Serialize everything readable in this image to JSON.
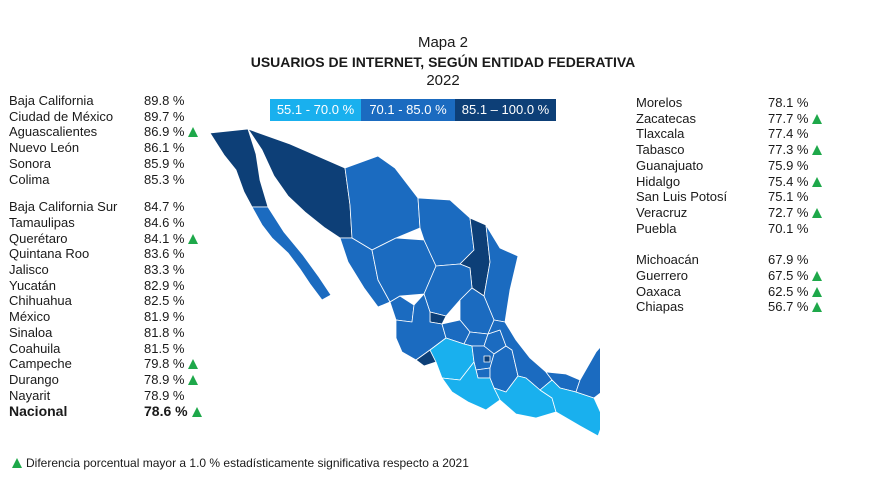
{
  "chart_data": {
    "type": "choropleth-map",
    "title": "Mapa 2",
    "subtitle": "USUARIOS DE INTERNET, SEGÚN ENTIDAD FEDERATIVA",
    "year": "2022",
    "unit": "%",
    "legend": [
      {
        "label": "55.1 - 70.0 %",
        "color": "#19b0ee"
      },
      {
        "label": "70.1 - 85.0 %",
        "color": "#1b6bc0"
      },
      {
        "label": "85.1 – 100.0 %",
        "color": "#0d3f77"
      }
    ],
    "left_groups": [
      [
        {
          "name": "Baja California",
          "value": "89.8 %",
          "sig": false
        },
        {
          "name": "Ciudad de México",
          "value": "89.7 %",
          "sig": false
        },
        {
          "name": "Aguascalientes",
          "value": "86.9 %",
          "sig": true
        },
        {
          "name": "Nuevo León",
          "value": "86.1 %",
          "sig": false
        },
        {
          "name": "Sonora",
          "value": "85.9 %",
          "sig": false
        },
        {
          "name": "Colima",
          "value": "85.3 %",
          "sig": false
        }
      ],
      [
        {
          "name": "Baja California Sur",
          "value": "84.7 %",
          "sig": false
        },
        {
          "name": "Tamaulipas",
          "value": "84.6 %",
          "sig": false
        },
        {
          "name": "Querétaro",
          "value": "84.1 %",
          "sig": true
        },
        {
          "name": "Quintana Roo",
          "value": "83.6 %",
          "sig": false
        },
        {
          "name": "Jalisco",
          "value": "83.3 %",
          "sig": false
        },
        {
          "name": "Yucatán",
          "value": "82.9 %",
          "sig": false
        },
        {
          "name": "Chihuahua",
          "value": "82.5 %",
          "sig": false
        },
        {
          "name": "México",
          "value": "81.9 %",
          "sig": false
        },
        {
          "name": "Sinaloa",
          "value": "81.8 %",
          "sig": false
        },
        {
          "name": "Coahuila",
          "value": "81.5 %",
          "sig": false
        },
        {
          "name": "Campeche",
          "value": "79.8 %",
          "sig": true
        },
        {
          "name": "Durango",
          "value": "78.9 %",
          "sig": true
        },
        {
          "name": "Nayarit",
          "value": "78.9 %",
          "sig": false
        }
      ]
    ],
    "national": {
      "name": "Nacional",
      "value": "78.6 %",
      "sig": true
    },
    "right_groups": [
      [
        {
          "name": "Morelos",
          "value": "78.1 %",
          "sig": false
        },
        {
          "name": "Zacatecas",
          "value": "77.7 %",
          "sig": true
        },
        {
          "name": "Tlaxcala",
          "value": "77.4 %",
          "sig": false
        },
        {
          "name": "Tabasco",
          "value": "77.3 %",
          "sig": true
        },
        {
          "name": "Guanajuato",
          "value": "75.9 %",
          "sig": false
        },
        {
          "name": "Hidalgo",
          "value": "75.4 %",
          "sig": true
        },
        {
          "name": "San Luis Potosí",
          "value": "75.1 %",
          "sig": false
        },
        {
          "name": "Veracruz",
          "value": "72.7 %",
          "sig": true
        },
        {
          "name": "Puebla",
          "value": "70.1 %",
          "sig": false
        }
      ],
      [
        {
          "name": "Michoacán",
          "value": "67.9 %",
          "sig": false
        },
        {
          "name": "Guerrero",
          "value": "67.5 %",
          "sig": true
        },
        {
          "name": "Oaxaca",
          "value": "62.5 %",
          "sig": true
        },
        {
          "name": "Chiapas",
          "value": "56.7 %",
          "sig": true
        }
      ]
    ],
    "footnote": "Diferencia porcentual mayor a 1.0 % estadísticamente significativa respecto a 2021",
    "marker_color": "#1ea84a"
  }
}
